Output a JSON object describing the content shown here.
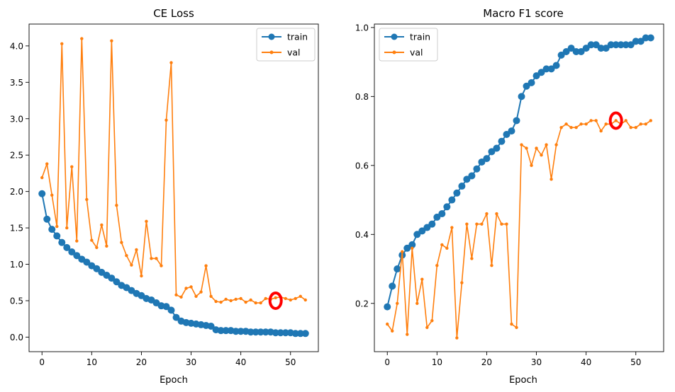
{
  "chart_data": [
    {
      "type": "line",
      "title": "CE Loss",
      "xlabel": "Epoch",
      "ylabel": "",
      "xlim": [
        -2.6,
        55.6
      ],
      "ylim": [
        -0.2,
        4.3
      ],
      "xticks": [
        0,
        10,
        20,
        30,
        40,
        50
      ],
      "yticks": [
        0.0,
        0.5,
        1.0,
        1.5,
        2.0,
        2.5,
        3.0,
        3.5,
        4.0
      ],
      "ytick_labels": [
        "0.0",
        "0.5",
        "1.0",
        "1.5",
        "2.0",
        "2.5",
        "3.0",
        "3.5",
        "4.0"
      ],
      "legend_position": "top-right",
      "grid": false,
      "series": [
        {
          "name": "train",
          "color": "#1f77b4",
          "marker": "large-dot",
          "x": [
            0,
            1,
            2,
            3,
            4,
            5,
            6,
            7,
            8,
            9,
            10,
            11,
            12,
            13,
            14,
            15,
            16,
            17,
            18,
            19,
            20,
            21,
            22,
            23,
            24,
            25,
            26,
            27,
            28,
            29,
            30,
            31,
            32,
            33,
            34,
            35,
            36,
            37,
            38,
            39,
            40,
            41,
            42,
            43,
            44,
            45,
            46,
            47,
            48,
            49,
            50,
            51,
            52,
            53
          ],
          "values": [
            1.97,
            1.62,
            1.48,
            1.39,
            1.3,
            1.23,
            1.17,
            1.12,
            1.07,
            1.03,
            0.98,
            0.94,
            0.89,
            0.85,
            0.81,
            0.76,
            0.71,
            0.68,
            0.64,
            0.6,
            0.57,
            0.53,
            0.51,
            0.47,
            0.43,
            0.42,
            0.37,
            0.27,
            0.22,
            0.2,
            0.19,
            0.18,
            0.17,
            0.16,
            0.15,
            0.1,
            0.09,
            0.09,
            0.09,
            0.08,
            0.08,
            0.08,
            0.07,
            0.07,
            0.07,
            0.07,
            0.07,
            0.06,
            0.06,
            0.06,
            0.06,
            0.05,
            0.05,
            0.05
          ]
        },
        {
          "name": "val",
          "color": "#ff7f0e",
          "marker": "small-dot",
          "x": [
            0,
            1,
            2,
            3,
            4,
            5,
            6,
            7,
            8,
            9,
            10,
            11,
            12,
            13,
            14,
            15,
            16,
            17,
            18,
            19,
            20,
            21,
            22,
            23,
            24,
            25,
            26,
            27,
            28,
            29,
            30,
            31,
            32,
            33,
            34,
            35,
            36,
            37,
            38,
            39,
            40,
            41,
            42,
            43,
            44,
            45,
            46,
            47,
            48,
            49,
            50,
            51,
            52,
            53
          ],
          "values": [
            2.19,
            2.38,
            1.95,
            1.52,
            4.03,
            1.5,
            2.34,
            1.32,
            4.1,
            1.89,
            1.33,
            1.23,
            1.54,
            1.25,
            4.07,
            1.81,
            1.3,
            1.12,
            0.99,
            1.2,
            0.84,
            1.59,
            1.08,
            1.08,
            0.98,
            2.98,
            3.77,
            0.58,
            0.55,
            0.67,
            0.69,
            0.56,
            0.62,
            0.98,
            0.56,
            0.49,
            0.48,
            0.52,
            0.5,
            0.52,
            0.53,
            0.48,
            0.51,
            0.47,
            0.47,
            0.53,
            0.52,
            0.54,
            0.55,
            0.53,
            0.51,
            0.53,
            0.56,
            0.51
          ]
        }
      ],
      "annotations": [
        {
          "type": "circle",
          "color": "#ff0000",
          "x": 47,
          "y": 0.5
        }
      ]
    },
    {
      "type": "line",
      "title": "Macro F1 score",
      "xlabel": "Epoch",
      "ylabel": "",
      "xlim": [
        -2.6,
        55.6
      ],
      "ylim": [
        0.06,
        1.01
      ],
      "xticks": [
        0,
        10,
        20,
        30,
        40,
        50
      ],
      "yticks": [
        0.2,
        0.4,
        0.6,
        0.8,
        1.0
      ],
      "ytick_labels": [
        "0.2",
        "0.4",
        "0.6",
        "0.8",
        "1.0"
      ],
      "legend_position": "top-left",
      "grid": false,
      "series": [
        {
          "name": "train",
          "color": "#1f77b4",
          "marker": "large-dot",
          "x": [
            0,
            1,
            2,
            3,
            4,
            5,
            6,
            7,
            8,
            9,
            10,
            11,
            12,
            13,
            14,
            15,
            16,
            17,
            18,
            19,
            20,
            21,
            22,
            23,
            24,
            25,
            26,
            27,
            28,
            29,
            30,
            31,
            32,
            33,
            34,
            35,
            36,
            37,
            38,
            39,
            40,
            41,
            42,
            43,
            44,
            45,
            46,
            47,
            48,
            49,
            50,
            51,
            52,
            53
          ],
          "values": [
            0.19,
            0.25,
            0.3,
            0.34,
            0.36,
            0.37,
            0.4,
            0.41,
            0.42,
            0.43,
            0.45,
            0.46,
            0.48,
            0.5,
            0.52,
            0.54,
            0.56,
            0.57,
            0.59,
            0.61,
            0.62,
            0.64,
            0.65,
            0.67,
            0.69,
            0.7,
            0.73,
            0.8,
            0.83,
            0.84,
            0.86,
            0.87,
            0.88,
            0.88,
            0.89,
            0.92,
            0.93,
            0.94,
            0.93,
            0.93,
            0.94,
            0.95,
            0.95,
            0.94,
            0.94,
            0.95,
            0.95,
            0.95,
            0.95,
            0.95,
            0.96,
            0.96,
            0.97,
            0.97
          ]
        },
        {
          "name": "val",
          "color": "#ff7f0e",
          "marker": "small-dot",
          "x": [
            0,
            1,
            2,
            3,
            4,
            5,
            6,
            7,
            8,
            9,
            10,
            11,
            12,
            13,
            14,
            15,
            16,
            17,
            18,
            19,
            20,
            21,
            22,
            23,
            24,
            25,
            26,
            27,
            28,
            29,
            30,
            31,
            32,
            33,
            34,
            35,
            36,
            37,
            38,
            39,
            40,
            41,
            42,
            43,
            44,
            45,
            46,
            47,
            48,
            49,
            50,
            51,
            52,
            53
          ],
          "values": [
            0.14,
            0.12,
            0.2,
            0.35,
            0.11,
            0.36,
            0.2,
            0.27,
            0.13,
            0.15,
            0.31,
            0.37,
            0.36,
            0.42,
            0.1,
            0.26,
            0.43,
            0.33,
            0.43,
            0.43,
            0.46,
            0.31,
            0.46,
            0.43,
            0.43,
            0.14,
            0.13,
            0.66,
            0.65,
            0.6,
            0.65,
            0.63,
            0.66,
            0.56,
            0.66,
            0.71,
            0.72,
            0.71,
            0.71,
            0.72,
            0.72,
            0.73,
            0.73,
            0.7,
            0.72,
            0.72,
            0.73,
            0.72,
            0.73,
            0.71,
            0.71,
            0.72,
            0.72,
            0.73
          ]
        }
      ],
      "annotations": [
        {
          "type": "circle",
          "color": "#ff0000",
          "x": 46,
          "y": 0.73
        }
      ]
    }
  ]
}
